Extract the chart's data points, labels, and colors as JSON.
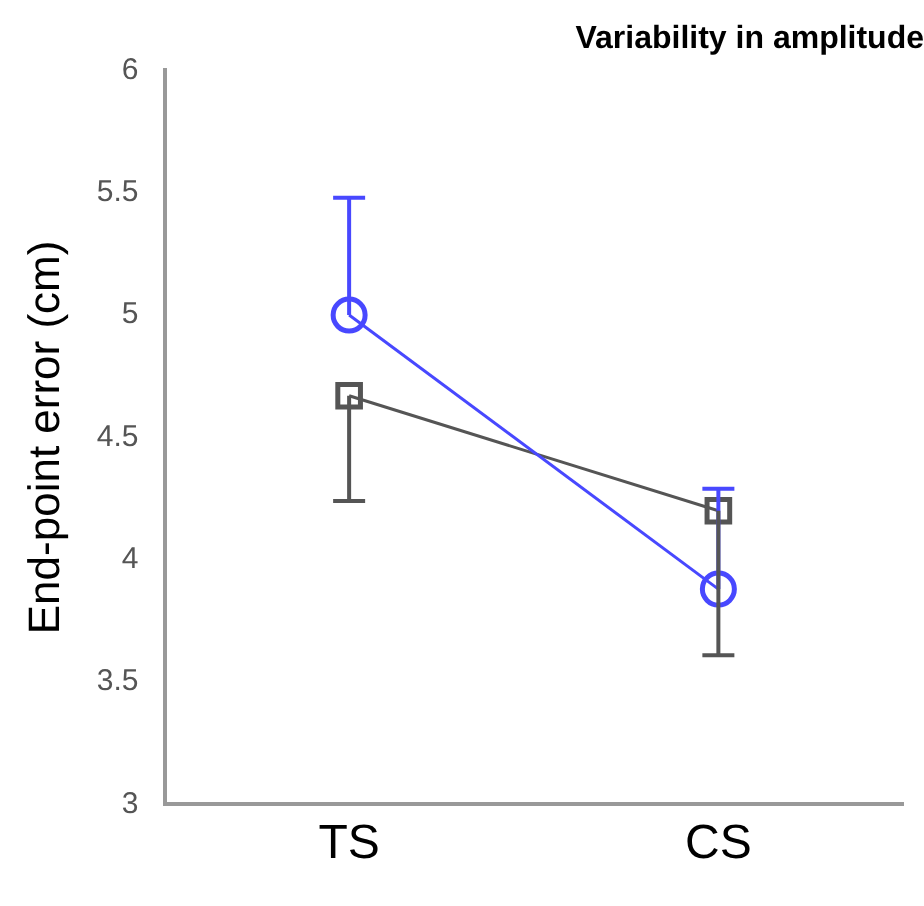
{
  "chart_data": {
    "type": "line",
    "title": "Variability in amplitude",
    "ylabel": "End-point error (cm)",
    "categories": [
      "TS",
      "CS"
    ],
    "series": [
      {
        "color": "#4848ff",
        "marker": "circle",
        "values": [
          5.0,
          3.88
        ],
        "errors": [
          [
            5.0,
            5.48
          ],
          [
            3.88,
            4.29
          ]
        ]
      },
      {
        "color": "#555555",
        "marker": "square",
        "values": [
          4.67,
          4.2
        ],
        "errors": [
          [
            4.24,
            4.67
          ],
          [
            3.61,
            4.2
          ]
        ]
      }
    ],
    "ylim": [
      3,
      6
    ],
    "yticks": [
      3,
      3.5,
      4,
      4.5,
      5,
      5.5,
      6
    ],
    "grid": false,
    "legend": false
  }
}
